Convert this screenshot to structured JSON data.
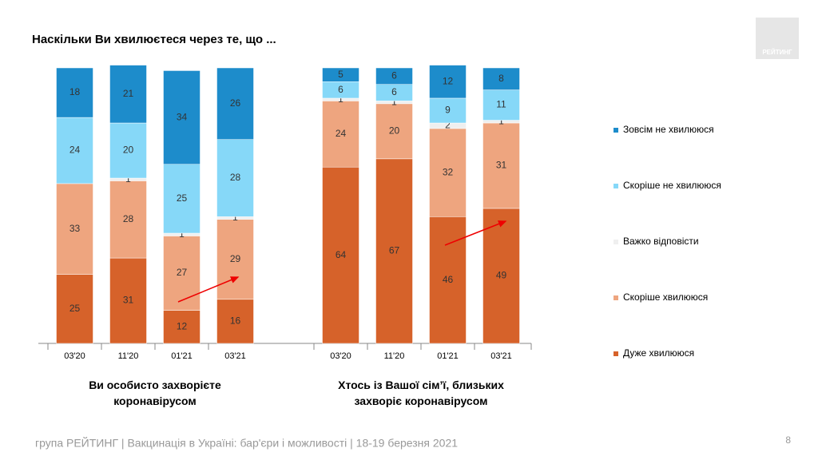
{
  "title": "Наскільки Ви хвилюєтеся через те, що ...",
  "logo": "РЕЙТИНГ",
  "footer": "група РЕЙТИНГ | Вакцинація в Україні: бар'єри і можливості | 18-19 березня 2021",
  "page_number": "8",
  "chart_data": {
    "type": "bar",
    "stacked": true,
    "categories": [
      "03'20",
      "11'20",
      "01'21",
      "03'21",
      "03'20",
      "11'20",
      "01'21",
      "03'21"
    ],
    "groups": [
      "Ви особисто захворієте коронавірусом",
      "Хтось із Вашої сім’ї, близьких захворіє коронавірусом"
    ],
    "ylim": [
      0,
      100
    ],
    "series": [
      {
        "name": "Дуже хвилююся",
        "color": "#d6622a",
        "values": [
          25,
          31,
          12,
          16,
          64,
          67,
          46,
          49
        ]
      },
      {
        "name": "Скоріше хвилююся",
        "color": "#eea57f",
        "values": [
          33,
          28,
          27,
          29,
          24,
          20,
          32,
          31
        ]
      },
      {
        "name": "Важко відповісти",
        "color": "#efefef",
        "values": [
          null,
          1,
          1,
          1,
          1,
          1,
          2,
          1
        ]
      },
      {
        "name": "Скоріше не хвилююся",
        "color": "#86d8f8",
        "values": [
          24,
          20,
          25,
          28,
          6,
          6,
          9,
          11
        ]
      },
      {
        "name": "Зовсім не хвилююся",
        "color": "#1d8ccb",
        "values": [
          18,
          21,
          34,
          26,
          5,
          6,
          12,
          8
        ]
      }
    ]
  }
}
